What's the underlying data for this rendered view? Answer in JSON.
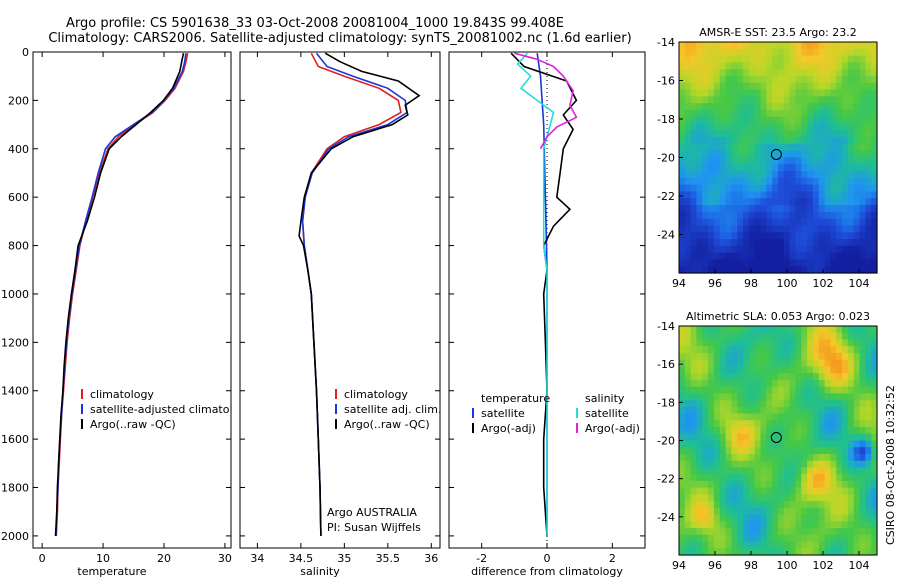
{
  "title": {
    "line1": "Argo profile: CS 5901638_33 03-Oct-2008 20081004_1000 19.843S 99.408E",
    "line2": "Climatology: CARS2006. Satellite-adjusted climatology: synTS_20081002.nc (1.6d earlier)"
  },
  "footer": "CSIRO 08-Oct-2008 10:32:52",
  "colors": {
    "clim": "#dd2222",
    "sat": "#1b36dd",
    "argo": "#000000",
    "sat_sal": "#22dddd",
    "argo_sal": "#dd22dd"
  },
  "chart_data": [
    {
      "type": "line",
      "name": "temperature",
      "xlabel": "temperature",
      "ylabel": "",
      "xlim": [
        -1.5,
        31
      ],
      "ylim": [
        2050,
        0
      ],
      "xticks": [
        0,
        10,
        20,
        30
      ],
      "yticks": [
        0,
        200,
        400,
        600,
        800,
        1000,
        1200,
        1400,
        1600,
        1800,
        2000
      ],
      "legend": [
        "climatology",
        "satellite-adjusted climatology",
        "Argo(..raw -QC)"
      ],
      "series": [
        {
          "name": "climatology",
          "color": "#dd2222",
          "points": [
            [
              23.9,
              5
            ],
            [
              23.6,
              40
            ],
            [
              23.2,
              80
            ],
            [
              21.8,
              150
            ],
            [
              20.2,
              200
            ],
            [
              18.2,
              250
            ],
            [
              15.2,
              300
            ],
            [
              12.5,
              350
            ],
            [
              10.8,
              400
            ],
            [
              9.4,
              500
            ],
            [
              8.3,
              600
            ],
            [
              7.2,
              700
            ],
            [
              6.2,
              800
            ],
            [
              5.6,
              900
            ],
            [
              5.0,
              1000
            ],
            [
              4.5,
              1100
            ],
            [
              4.1,
              1200
            ],
            [
              3.8,
              1300
            ],
            [
              3.5,
              1400
            ],
            [
              3.2,
              1500
            ],
            [
              3.0,
              1600
            ],
            [
              2.8,
              1700
            ],
            [
              2.6,
              1800
            ],
            [
              2.5,
              1900
            ],
            [
              2.3,
              2000
            ]
          ]
        },
        {
          "name": "satellite-adjusted climatology",
          "color": "#1b36dd",
          "points": [
            [
              23.6,
              5
            ],
            [
              23.4,
              40
            ],
            [
              23.0,
              80
            ],
            [
              21.6,
              150
            ],
            [
              20.0,
              200
            ],
            [
              18.0,
              250
            ],
            [
              15.0,
              300
            ],
            [
              12.0,
              350
            ],
            [
              10.4,
              400
            ],
            [
              9.2,
              500
            ],
            [
              8.2,
              600
            ],
            [
              7.1,
              700
            ],
            [
              6.1,
              800
            ],
            [
              5.5,
              900
            ],
            [
              4.9,
              1000
            ],
            [
              4.4,
              1100
            ],
            [
              4.0,
              1200
            ],
            [
              3.7,
              1300
            ],
            [
              3.4,
              1400
            ],
            [
              3.2,
              1500
            ],
            [
              2.9,
              1600
            ],
            [
              2.7,
              1700
            ],
            [
              2.6,
              1800
            ],
            [
              2.4,
              1900
            ],
            [
              2.3,
              2000
            ]
          ]
        },
        {
          "name": "Argo(..raw -QC)",
          "color": "#000000",
          "points": [
            [
              23.2,
              5
            ],
            [
              22.9,
              40
            ],
            [
              22.6,
              80
            ],
            [
              21.4,
              150
            ],
            [
              19.9,
              200
            ],
            [
              17.8,
              250
            ],
            [
              15.4,
              300
            ],
            [
              13.0,
              350
            ],
            [
              11.0,
              400
            ],
            [
              9.6,
              500
            ],
            [
              8.6,
              600
            ],
            [
              7.4,
              700
            ],
            [
              5.9,
              800
            ],
            [
              5.4,
              900
            ],
            [
              4.8,
              1000
            ],
            [
              4.3,
              1100
            ],
            [
              3.9,
              1200
            ],
            [
              3.6,
              1300
            ],
            [
              3.4,
              1400
            ],
            [
              3.1,
              1500
            ],
            [
              2.9,
              1600
            ],
            [
              2.7,
              1700
            ],
            [
              2.5,
              1800
            ],
            [
              2.4,
              1900
            ],
            [
              2.2,
              2000
            ]
          ]
        }
      ]
    },
    {
      "type": "line",
      "name": "salinity",
      "xlabel": "salinity",
      "ylabel": "",
      "xlim": [
        33.8,
        36.1
      ],
      "ylim": [
        2050,
        0
      ],
      "xticks": [
        34,
        34.5,
        35,
        35.5,
        36
      ],
      "yticks": [
        0,
        200,
        400,
        600,
        800,
        1000,
        1200,
        1400,
        1600,
        1800,
        2000
      ],
      "legend": [
        "climatology",
        "satellite adj. clim.",
        "Argo(..raw -QC)"
      ],
      "annotation": [
        "Argo AUSTRALIA",
        "PI: Susan Wijffels"
      ],
      "series": [
        {
          "name": "climatology",
          "color": "#dd2222",
          "points": [
            [
              34.62,
              5
            ],
            [
              34.7,
              60
            ],
            [
              35.0,
              100
            ],
            [
              35.4,
              150
            ],
            [
              35.62,
              200
            ],
            [
              35.65,
              250
            ],
            [
              35.4,
              300
            ],
            [
              35.0,
              350
            ],
            [
              34.8,
              400
            ],
            [
              34.62,
              500
            ],
            [
              34.55,
              600
            ],
            [
              34.52,
              700
            ],
            [
              34.54,
              800
            ],
            [
              34.58,
              900
            ],
            [
              34.62,
              1000
            ],
            [
              34.65,
              1200
            ],
            [
              34.68,
              1400
            ],
            [
              34.7,
              1600
            ],
            [
              34.72,
              1800
            ],
            [
              34.73,
              2000
            ]
          ]
        },
        {
          "name": "satellite adj. clim.",
          "color": "#1b36dd",
          "points": [
            [
              34.68,
              5
            ],
            [
              34.8,
              60
            ],
            [
              35.1,
              100
            ],
            [
              35.5,
              150
            ],
            [
              35.7,
              200
            ],
            [
              35.72,
              250
            ],
            [
              35.5,
              300
            ],
            [
              35.05,
              350
            ],
            [
              34.82,
              400
            ],
            [
              34.63,
              500
            ],
            [
              34.55,
              600
            ],
            [
              34.52,
              700
            ],
            [
              34.54,
              800
            ],
            [
              34.58,
              900
            ],
            [
              34.62,
              1000
            ],
            [
              34.65,
              1200
            ],
            [
              34.68,
              1400
            ],
            [
              34.7,
              1600
            ],
            [
              34.72,
              1800
            ],
            [
              34.73,
              2000
            ]
          ]
        },
        {
          "name": "Argo(..raw -QC)",
          "color": "#000000",
          "points": [
            [
              34.78,
              5
            ],
            [
              34.95,
              40
            ],
            [
              35.2,
              80
            ],
            [
              35.62,
              120
            ],
            [
              35.86,
              180
            ],
            [
              35.7,
              220
            ],
            [
              35.73,
              260
            ],
            [
              35.55,
              300
            ],
            [
              35.1,
              350
            ],
            [
              34.85,
              400
            ],
            [
              34.62,
              500
            ],
            [
              34.54,
              600
            ],
            [
              34.5,
              700
            ],
            [
              34.48,
              760
            ],
            [
              34.53,
              800
            ],
            [
              34.58,
              900
            ],
            [
              34.62,
              1000
            ],
            [
              34.65,
              1200
            ],
            [
              34.68,
              1400
            ],
            [
              34.7,
              1600
            ],
            [
              34.72,
              1800
            ],
            [
              34.73,
              2000
            ]
          ]
        }
      ]
    },
    {
      "type": "line",
      "name": "difference",
      "xlabel": "difference from climatology",
      "ylabel": "",
      "xlim": [
        -3,
        3
      ],
      "ylim": [
        2050,
        0
      ],
      "xticks": [
        -2,
        0,
        2
      ],
      "yticks": [
        0,
        200,
        400,
        600,
        800,
        1000,
        1200,
        1400,
        1600,
        1800,
        2000
      ],
      "legend_titles": [
        "temperature",
        "salinity"
      ],
      "legend": [
        "satellite",
        "Argo(-adj)",
        "satellite",
        "Argo(-adj)"
      ],
      "series": [
        {
          "name": "temperature satellite",
          "color": "#1b36dd",
          "points": [
            [
              -0.3,
              5
            ],
            [
              -0.2,
              100
            ],
            [
              -0.1,
              300
            ],
            [
              -0.05,
              600
            ],
            [
              0,
              900
            ],
            [
              0,
              2000
            ]
          ]
        },
        {
          "name": "temperature Argo(-adj)",
          "color": "#000000",
          "points": [
            [
              -1.1,
              5
            ],
            [
              -0.7,
              60
            ],
            [
              0.6,
              120
            ],
            [
              0.9,
              200
            ],
            [
              0.5,
              260
            ],
            [
              0.8,
              320
            ],
            [
              0.5,
              400
            ],
            [
              0.4,
              500
            ],
            [
              0.3,
              600
            ],
            [
              0.7,
              650
            ],
            [
              0.2,
              720
            ],
            [
              -0.1,
              800
            ],
            [
              0,
              900
            ],
            [
              -0.1,
              1000
            ],
            [
              -0.05,
              1200
            ],
            [
              0,
              1400
            ],
            [
              -0.1,
              1600
            ],
            [
              -0.1,
              1800
            ],
            [
              0,
              2000
            ]
          ]
        },
        {
          "name": "salinity satellite",
          "color": "#22dddd",
          "points": [
            [
              -0.6,
              5
            ],
            [
              -0.9,
              50
            ],
            [
              -0.5,
              100
            ],
            [
              -0.8,
              150
            ],
            [
              -0.3,
              200
            ],
            [
              0.2,
              250
            ],
            [
              0.1,
              300
            ],
            [
              -0.1,
              400
            ],
            [
              -0.1,
              600
            ],
            [
              -0.1,
              800
            ],
            [
              0,
              900
            ],
            [
              0,
              2000
            ]
          ]
        },
        {
          "name": "salinity Argo(-adj)",
          "color": "#dd22dd",
          "points": [
            [
              -1.0,
              5
            ],
            [
              -0.3,
              30
            ],
            [
              0.2,
              60
            ],
            [
              0.5,
              100
            ],
            [
              0.8,
              160
            ],
            [
              0.7,
              220
            ],
            [
              0.9,
              270
            ],
            [
              0.3,
              310
            ],
            [
              0.0,
              350
            ],
            [
              -0.2,
              400
            ]
          ]
        }
      ]
    },
    {
      "type": "heatmap",
      "name": "sst",
      "title": "AMSR-E SST: 23.5 Argo: 23.2",
      "xlim": [
        94,
        105
      ],
      "ylim": [
        -26,
        -14
      ],
      "xticks": [
        94,
        96,
        98,
        100,
        102,
        104
      ],
      "yticks": [
        -24,
        -22,
        -20,
        -18,
        -16,
        -14
      ],
      "marker": [
        99.408,
        -19.843
      ]
    },
    {
      "type": "heatmap",
      "name": "sla",
      "title": "Altimetric SLA: 0.053 Argo: 0.023",
      "xlim": [
        94,
        105
      ],
      "ylim": [
        -26,
        -14
      ],
      "xticks": [
        94,
        96,
        98,
        100,
        102,
        104
      ],
      "yticks": [
        -24,
        -22,
        -20,
        -18,
        -16,
        -14
      ],
      "marker": [
        99.408,
        -19.843
      ]
    }
  ]
}
